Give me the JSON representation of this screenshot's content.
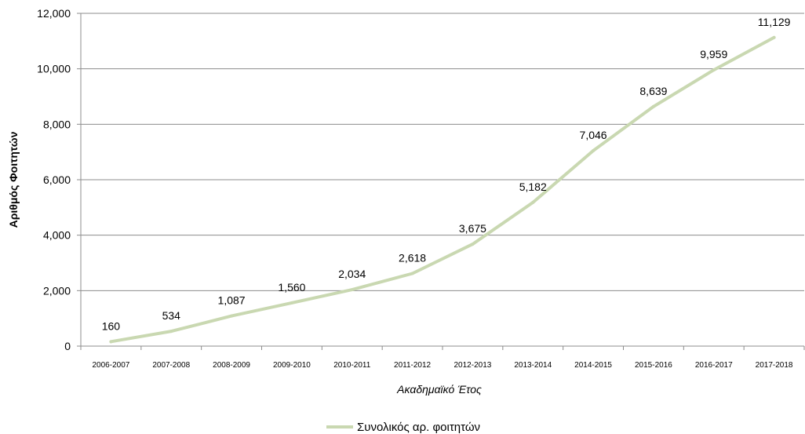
{
  "chart_data": {
    "type": "line",
    "title": "",
    "xlabel": "Ακαδημαϊκό Έτος",
    "ylabel": "Αριθμός Φοιτητών",
    "ylim": [
      0,
      12000
    ],
    "yticks": [
      "0",
      "2,000",
      "4,000",
      "6,000",
      "8,000",
      "10,000",
      "12,000"
    ],
    "categories": [
      "2006-2007",
      "2007-2008",
      "2008-2009",
      "2009-2010",
      "2010-2011",
      "2011-2012",
      "2012-2013",
      "2013-2014",
      "2014-2015",
      "2015-2016",
      "2016-2017",
      "2017-2018"
    ],
    "series": [
      {
        "name": "Συνολικός αρ. φοιτητών",
        "color": "#c9d8b1",
        "values": [
          160,
          534,
          1087,
          1560,
          2034,
          2618,
          3675,
          5182,
          7046,
          8639,
          9959,
          11129
        ],
        "labels": [
          "160",
          "534",
          "1,087",
          "1,560",
          "2,034",
          "2,618",
          "3,675",
          "5,182",
          "7,046",
          "8,639",
          "9,959",
          "11,129"
        ]
      }
    ],
    "grid": true,
    "legend_position": "bottom"
  }
}
